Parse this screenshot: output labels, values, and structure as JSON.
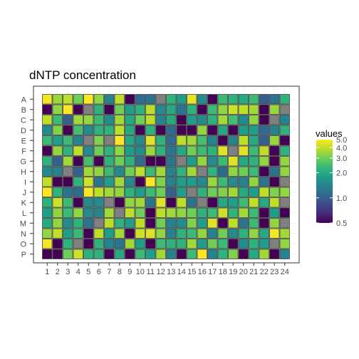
{
  "chart_data": {
    "type": "heatmap",
    "title": "dNTP concentration",
    "xlabel": "",
    "ylabel": "",
    "columns": [
      "1",
      "2",
      "3",
      "4",
      "5",
      "6",
      "7",
      "8",
      "9",
      "10",
      "11",
      "12",
      "13",
      "14",
      "15",
      "16",
      "17",
      "18",
      "19",
      "20",
      "21",
      "22",
      "23",
      "24"
    ],
    "rows": [
      "A",
      "B",
      "C",
      "D",
      "E",
      "F",
      "G",
      "H",
      "I",
      "J",
      "K",
      "L",
      "M",
      "N",
      "O",
      "P"
    ],
    "color_scale": "viridis (log scale)",
    "missing_color": "#808080",
    "legend": {
      "title": "values",
      "range": [
        0.5,
        5.0
      ],
      "breaks": [
        5.0,
        4.0,
        3.0,
        2.0,
        1.0,
        0.5
      ],
      "break_labels": [
        "5.0",
        "4.0",
        "3.0",
        "2.0",
        "1.0",
        "0.5"
      ],
      "position": "right"
    },
    "grid": true,
    "values": [
      [
        4.8,
        3.5,
        4.0,
        3.0,
        5.0,
        3.4,
        1.4,
        4.0,
        0.5,
        1.1,
        1.2,
        null,
        2.2,
        1.8,
        4.6,
        1.5,
        0.5,
        2.4,
        2.2,
        2.0,
        2.4,
        1.0,
        1.2,
        2.2
      ],
      [
        0.5,
        3.4,
        5.0,
        0.5,
        null,
        2.2,
        0.5,
        3.0,
        1.8,
        2.2,
        4.0,
        1.5,
        2.0,
        1.2,
        2.2,
        0.5,
        2.4,
        3.4,
        4.2,
        4.0,
        3.6,
        0.5,
        3.5,
        null
      ],
      [
        4.0,
        2.4,
        1.0,
        3.6,
        3.4,
        2.4,
        1.5,
        3.6,
        2.0,
        3.0,
        4.0,
        1.4,
        2.0,
        0.5,
        1.8,
        1.5,
        2.2,
        3.6,
        2.5,
        1.5,
        3.4,
        0.5,
        null,
        1.4
      ],
      [
        1.5,
        3.2,
        0.5,
        2.5,
        1.5,
        2.2,
        2.2,
        4.0,
        2.0,
        0.5,
        2.2,
        0.5,
        1.1,
        0.5,
        0.5,
        3.4,
        0.5,
        2.0,
        0.5,
        1.8,
        1.8,
        1.1,
        1.4,
        2.2
      ],
      [
        2.4,
        1.8,
        2.4,
        1.4,
        null,
        3.2,
        null,
        5.0,
        2.0,
        1.5,
        4.5,
        2.2,
        1.1,
        4.0,
        3.6,
        2.5,
        1.4,
        0.5,
        1.4,
        4.0,
        2.0,
        1.0,
        3.5,
        0.5
      ],
      [
        0.5,
        3.4,
        2.2,
        4.0,
        1.5,
        3.0,
        2.2,
        3.4,
        1.8,
        1.5,
        3.5,
        2.2,
        1.2,
        2.0,
        3.0,
        2.4,
        2.2,
        4.5,
        null,
        4.5,
        2.4,
        4.0,
        0.5,
        2.2
      ],
      [
        2.2,
        1.0,
        3.6,
        0.5,
        2.5,
        0.5,
        2.2,
        3.0,
        2.2,
        1.1,
        0.5,
        0.5,
        1.2,
        null,
        1.8,
        3.4,
        1.5,
        2.4,
        4.5,
        2.0,
        2.2,
        3.4,
        0.5,
        3.4
      ],
      [
        1.5,
        1.4,
        null,
        1.0,
        3.6,
        3.4,
        2.4,
        1.5,
        3.0,
        4.0,
        2.4,
        3.6,
        1.4,
        2.2,
        3.6,
        null,
        2.2,
        1.1,
        3.4,
        3.0,
        2.4,
        0.5,
        1.2,
        3.4
      ],
      [
        4.0,
        0.5,
        0.5,
        2.2,
        4.2,
        1.2,
        1.8,
        3.6,
        1.5,
        0.5,
        5.0,
        3.2,
        1.4,
        1.8,
        1.8,
        1.5,
        3.5,
        2.4,
        1.5,
        1.4,
        3.4,
        1.2,
        0.5,
        null
      ],
      [
        5.0,
        2.2,
        1.2,
        1.1,
        4.8,
        4.0,
        3.6,
        3.4,
        2.2,
        1.8,
        2.4,
        3.0,
        1.0,
        1.8,
        null,
        2.2,
        3.0,
        3.2,
        3.6,
        2.0,
        1.8,
        4.0,
        3.2,
        3.4
      ],
      [
        2.2,
        4.2,
        2.4,
        0.5,
        1.5,
        1.5,
        null,
        0.5,
        3.4,
        3.6,
        1.2,
        4.5,
        0.5,
        4.0,
        1.2,
        null,
        0.5,
        2.0,
        1.8,
        2.4,
        4.0,
        2.0,
        4.0,
        null
      ],
      [
        1.8,
        3.4,
        2.4,
        3.4,
        1.5,
        1.4,
        3.6,
        null,
        4.0,
        3.0,
        0.5,
        4.0,
        3.6,
        3.4,
        3.0,
        2.2,
        2.4,
        4.2,
        2.2,
        3.6,
        2.4,
        0.5,
        1.8,
        0.5
      ],
      [
        2.0,
        3.4,
        1.5,
        2.2,
        1.2,
        null,
        4.0,
        2.2,
        1.8,
        4.0,
        0.5,
        3.0,
        1.4,
        1.5,
        3.2,
        1.8,
        4.5,
        0.5,
        4.0,
        1.2,
        2.4,
        0.5,
        3.4,
        null
      ],
      [
        3.4,
        4.0,
        1.8,
        2.4,
        0.5,
        4.0,
        1.8,
        3.6,
        0.5,
        4.2,
        4.5,
        3.4,
        1.4,
        2.2,
        2.4,
        3.4,
        1.4,
        3.0,
        1.5,
        2.2,
        3.4,
        2.0,
        4.8,
        3.6
      ],
      [
        4.8,
        0.5,
        2.2,
        null,
        0.5,
        2.2,
        1.4,
        1.2,
        3.6,
        1.8,
        0.5,
        2.4,
        2.2,
        2.2,
        3.6,
        1.8,
        3.0,
        2.4,
        0.5,
        1.5,
        2.2,
        1.8,
        null,
        3.4
      ],
      [
        0.5,
        0.5,
        3.0,
        4.2,
        2.2,
        2.2,
        0.5,
        2.0,
        0.5,
        2.4,
        1.8,
        3.6,
        1.4,
        0.5,
        2.4,
        5.0,
        1.4,
        2.2,
        3.2,
        0.5,
        2.0,
        3.6,
        0.5,
        1.4
      ]
    ]
  }
}
